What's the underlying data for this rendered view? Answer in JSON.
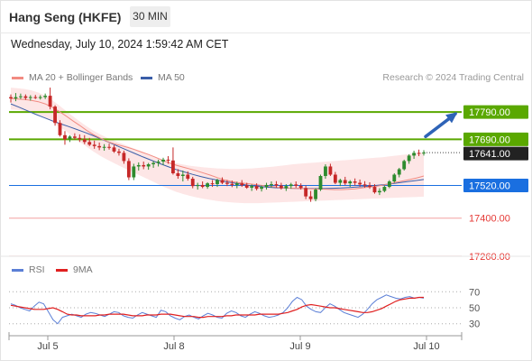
{
  "header": {
    "title": "Hang Seng (HKFE)",
    "interval": "30 MIN",
    "datetime": "Wednesday, July 10, 2024 1:59:42 AM CET"
  },
  "legend": {
    "ma20": "MA 20 + Bollinger Bands",
    "ma50": "MA 50",
    "credit": "Research © 2024 Trading Central",
    "rsi": "RSI",
    "rsi_ma": "9MA"
  },
  "colors": {
    "up": "#2e8b2e",
    "down": "#c62828",
    "ma20": "#f28b82",
    "ma50": "#3a5ea8",
    "band_fill": "#fde3e3",
    "green_level": "#5aa800",
    "blue_level": "#1a6fe0",
    "red_level": "#f4a0a0",
    "rsi": "#5b7fd6",
    "rsi_ma": "#e02020",
    "arrow": "#2e63b7"
  },
  "chart_data": [
    {
      "type": "candlestick",
      "x_ticks": [
        "Jul 5",
        "Jul 8",
        "Jul 9",
        "Jul 10"
      ],
      "ylim": [
        17200,
        17920
      ],
      "last_price": 17641,
      "last_price_label": "17641.00",
      "levels": [
        {
          "value": 17790,
          "label": "17790.00",
          "kind": "green"
        },
        {
          "value": 17690,
          "label": "17690.00",
          "kind": "green"
        },
        {
          "value": 17520,
          "label": "17520.00",
          "kind": "blue"
        },
        {
          "value": 17400,
          "label": "17400.00",
          "kind": "red"
        },
        {
          "value": 17260,
          "label": "17260.00",
          "kind": "red"
        }
      ],
      "candles": [
        [
          17845,
          17855,
          17825,
          17840
        ],
        [
          17840,
          17860,
          17830,
          17845
        ],
        [
          17845,
          17858,
          17838,
          17848
        ],
        [
          17848,
          17855,
          17835,
          17842
        ],
        [
          17842,
          17852,
          17832,
          17845
        ],
        [
          17845,
          17853,
          17838,
          17843
        ],
        [
          17843,
          17852,
          17836,
          17845
        ],
        [
          17845,
          17858,
          17838,
          17850
        ],
        [
          17850,
          17880,
          17800,
          17810
        ],
        [
          17810,
          17815,
          17740,
          17750
        ],
        [
          17750,
          17760,
          17700,
          17705
        ],
        [
          17705,
          17720,
          17670,
          17690
        ],
        [
          17690,
          17705,
          17680,
          17700
        ],
        [
          17700,
          17712,
          17688,
          17695
        ],
        [
          17695,
          17708,
          17680,
          17690
        ],
        [
          17690,
          17705,
          17672,
          17680
        ],
        [
          17680,
          17695,
          17665,
          17670
        ],
        [
          17670,
          17685,
          17655,
          17665
        ],
        [
          17665,
          17678,
          17650,
          17660
        ],
        [
          17660,
          17672,
          17648,
          17662
        ],
        [
          17662,
          17674,
          17652,
          17660
        ],
        [
          17660,
          17668,
          17640,
          17645
        ],
        [
          17645,
          17655,
          17630,
          17640
        ],
        [
          17640,
          17648,
          17600,
          17610
        ],
        [
          17610,
          17620,
          17540,
          17550
        ],
        [
          17550,
          17600,
          17540,
          17590
        ],
        [
          17590,
          17605,
          17575,
          17595
        ],
        [
          17595,
          17608,
          17580,
          17590
        ],
        [
          17590,
          17603,
          17578,
          17598
        ],
        [
          17598,
          17610,
          17585,
          17603
        ],
        [
          17603,
          17615,
          17590,
          17608
        ],
        [
          17608,
          17622,
          17595,
          17615
        ],
        [
          17615,
          17628,
          17600,
          17612
        ],
        [
          17612,
          17660,
          17560,
          17565
        ],
        [
          17565,
          17580,
          17545,
          17555
        ],
        [
          17555,
          17575,
          17535,
          17560
        ],
        [
          17560,
          17572,
          17538,
          17545
        ],
        [
          17545,
          17552,
          17510,
          17518
        ],
        [
          17518,
          17530,
          17505,
          17522
        ],
        [
          17522,
          17535,
          17510,
          17515
        ],
        [
          17515,
          17532,
          17508,
          17528
        ],
        [
          17528,
          17540,
          17515,
          17525
        ],
        [
          17525,
          17545,
          17515,
          17540
        ],
        [
          17540,
          17550,
          17525,
          17530
        ],
        [
          17530,
          17540,
          17518,
          17526
        ],
        [
          17526,
          17538,
          17514,
          17522
        ],
        [
          17522,
          17534,
          17510,
          17528
        ],
        [
          17528,
          17540,
          17515,
          17521
        ],
        [
          17521,
          17530,
          17508,
          17512
        ],
        [
          17512,
          17524,
          17500,
          17518
        ],
        [
          17518,
          17528,
          17502,
          17508
        ],
        [
          17508,
          17520,
          17498,
          17515
        ],
        [
          17515,
          17530,
          17505,
          17522
        ],
        [
          17522,
          17535,
          17512,
          17525
        ],
        [
          17525,
          17536,
          17512,
          17520
        ],
        [
          17520,
          17530,
          17505,
          17510
        ],
        [
          17510,
          17525,
          17500,
          17518
        ],
        [
          17518,
          17530,
          17508,
          17524
        ],
        [
          17524,
          17535,
          17512,
          17519
        ],
        [
          17519,
          17528,
          17505,
          17511
        ],
        [
          17511,
          17520,
          17470,
          17480
        ],
        [
          17480,
          17500,
          17460,
          17470
        ],
        [
          17470,
          17510,
          17462,
          17505
        ],
        [
          17505,
          17560,
          17500,
          17555
        ],
        [
          17555,
          17598,
          17545,
          17590
        ],
        [
          17590,
          17600,
          17555,
          17560
        ],
        [
          17560,
          17570,
          17525,
          17530
        ],
        [
          17530,
          17545,
          17518,
          17540
        ],
        [
          17540,
          17552,
          17522,
          17528
        ],
        [
          17528,
          17540,
          17515,
          17535
        ],
        [
          17535,
          17546,
          17520,
          17530
        ],
        [
          17530,
          17542,
          17516,
          17524
        ],
        [
          17524,
          17536,
          17512,
          17520
        ],
        [
          17520,
          17532,
          17508,
          17515
        ],
        [
          17515,
          17525,
          17490,
          17495
        ],
        [
          17495,
          17510,
          17485,
          17500
        ],
        [
          17500,
          17520,
          17495,
          17515
        ],
        [
          17515,
          17540,
          17510,
          17535
        ],
        [
          17535,
          17565,
          17530,
          17560
        ],
        [
          17560,
          17585,
          17550,
          17580
        ],
        [
          17580,
          17615,
          17575,
          17610
        ],
        [
          17610,
          17635,
          17600,
          17630
        ],
        [
          17630,
          17648,
          17618,
          17640
        ],
        [
          17640,
          17652,
          17628,
          17638
        ],
        [
          17638,
          17650,
          17630,
          17641
        ]
      ],
      "ma20": [
        17840,
        17838,
        17836,
        17833,
        17828,
        17820,
        17808,
        17793,
        17776,
        17758,
        17741,
        17723,
        17707,
        17694,
        17682,
        17673,
        17667,
        17660,
        17652,
        17643,
        17634,
        17624,
        17613,
        17603,
        17595,
        17588,
        17581,
        17574,
        17566,
        17558,
        17549,
        17541,
        17535,
        17531,
        17528,
        17525,
        17522,
        17519,
        17516,
        17513,
        17511,
        17510,
        17509,
        17508,
        17508,
        17507,
        17506,
        17505,
        17505,
        17506,
        17508,
        17511,
        17514,
        17517,
        17521,
        17526,
        17532,
        17537,
        17542,
        17548,
        17555
      ],
      "ma50": [
        17820,
        17808,
        17795,
        17782,
        17770,
        17758,
        17747,
        17737,
        17726,
        17715,
        17703,
        17690,
        17677,
        17664,
        17651,
        17638,
        17625,
        17613,
        17601,
        17590,
        17579,
        17570,
        17561,
        17553,
        17546,
        17540,
        17534,
        17529,
        17524,
        17520,
        17517,
        17514,
        17512,
        17511,
        17510,
        17509,
        17509,
        17509,
        17509,
        17510,
        17511,
        17513,
        17515,
        17517,
        17520,
        17523,
        17526,
        17530,
        17534,
        17538,
        17542
      ],
      "bb_upper": [
        17880,
        17878,
        17875,
        17870,
        17862,
        17850,
        17834,
        17815,
        17795,
        17775,
        17756,
        17738,
        17722,
        17708,
        17695,
        17685,
        17675,
        17665,
        17655,
        17645,
        17635,
        17625,
        17616,
        17608,
        17602,
        17597,
        17593,
        17590,
        17587,
        17585,
        17583,
        17582,
        17581,
        17581,
        17582,
        17583,
        17585,
        17587,
        17589,
        17592,
        17595,
        17598,
        17600,
        17602,
        17604,
        17606,
        17608,
        17610,
        17612,
        17614,
        17616,
        17618,
        17620,
        17622,
        17624,
        17627,
        17630,
        17633,
        17636,
        17639,
        17642
      ],
      "bb_lower": [
        17800,
        17798,
        17795,
        17790,
        17782,
        17770,
        17754,
        17738,
        17720,
        17700,
        17681,
        17663,
        17645,
        17629,
        17615,
        17602,
        17590,
        17578,
        17566,
        17554,
        17542,
        17530,
        17518,
        17507,
        17497,
        17489,
        17482,
        17476,
        17471,
        17467,
        17463,
        17460,
        17458,
        17456,
        17455,
        17455,
        17455,
        17456,
        17457,
        17458,
        17459,
        17460,
        17461,
        17462,
        17463,
        17464,
        17465,
        17466,
        17467,
        17468,
        17469,
        17470,
        17471,
        17472,
        17473,
        17474,
        17475,
        17476,
        17477,
        17478,
        17479
      ]
    },
    {
      "type": "line",
      "ylim": [
        15,
        85
      ],
      "y_ticks": [
        70,
        50,
        30
      ],
      "series": [
        {
          "name": "RSI",
          "values": [
            55,
            53,
            50,
            48,
            46,
            52,
            57,
            55,
            45,
            35,
            30,
            38,
            40,
            42,
            40,
            38,
            42,
            44,
            43,
            41,
            39,
            42,
            45,
            44,
            40,
            38,
            37,
            41,
            44,
            42,
            40,
            38,
            47,
            45,
            40,
            37,
            35,
            39,
            41,
            38,
            36,
            40,
            43,
            41,
            38,
            37,
            43,
            46,
            44,
            40,
            38,
            42,
            45,
            43,
            40,
            38,
            39,
            41,
            44,
            50,
            58,
            63,
            60,
            52,
            48,
            45,
            44,
            50,
            55,
            52,
            48,
            44,
            42,
            40,
            38,
            42,
            48,
            55,
            60,
            63,
            66,
            64,
            62,
            61,
            63,
            64,
            62,
            63,
            62
          ]
        },
        {
          "name": "9MA",
          "values": [
            53,
            52,
            51,
            50,
            49,
            48,
            48,
            48,
            49,
            50,
            48,
            45,
            42,
            41,
            41,
            40,
            40,
            40,
            40,
            41,
            41,
            42,
            42,
            42,
            42,
            41,
            40,
            40,
            40,
            41,
            41,
            41,
            42,
            42,
            42,
            41,
            40,
            39,
            39,
            39,
            38,
            38,
            39,
            39,
            39,
            39,
            40,
            40,
            41,
            41,
            41,
            41,
            41,
            42,
            42,
            42,
            42,
            42,
            43,
            44,
            46,
            48,
            51,
            53,
            54,
            53,
            52,
            51,
            50,
            50,
            49,
            48,
            47,
            46,
            45,
            44,
            44,
            45,
            47,
            49,
            52,
            55,
            58,
            60,
            61,
            62,
            62,
            63,
            63
          ]
        }
      ]
    }
  ]
}
